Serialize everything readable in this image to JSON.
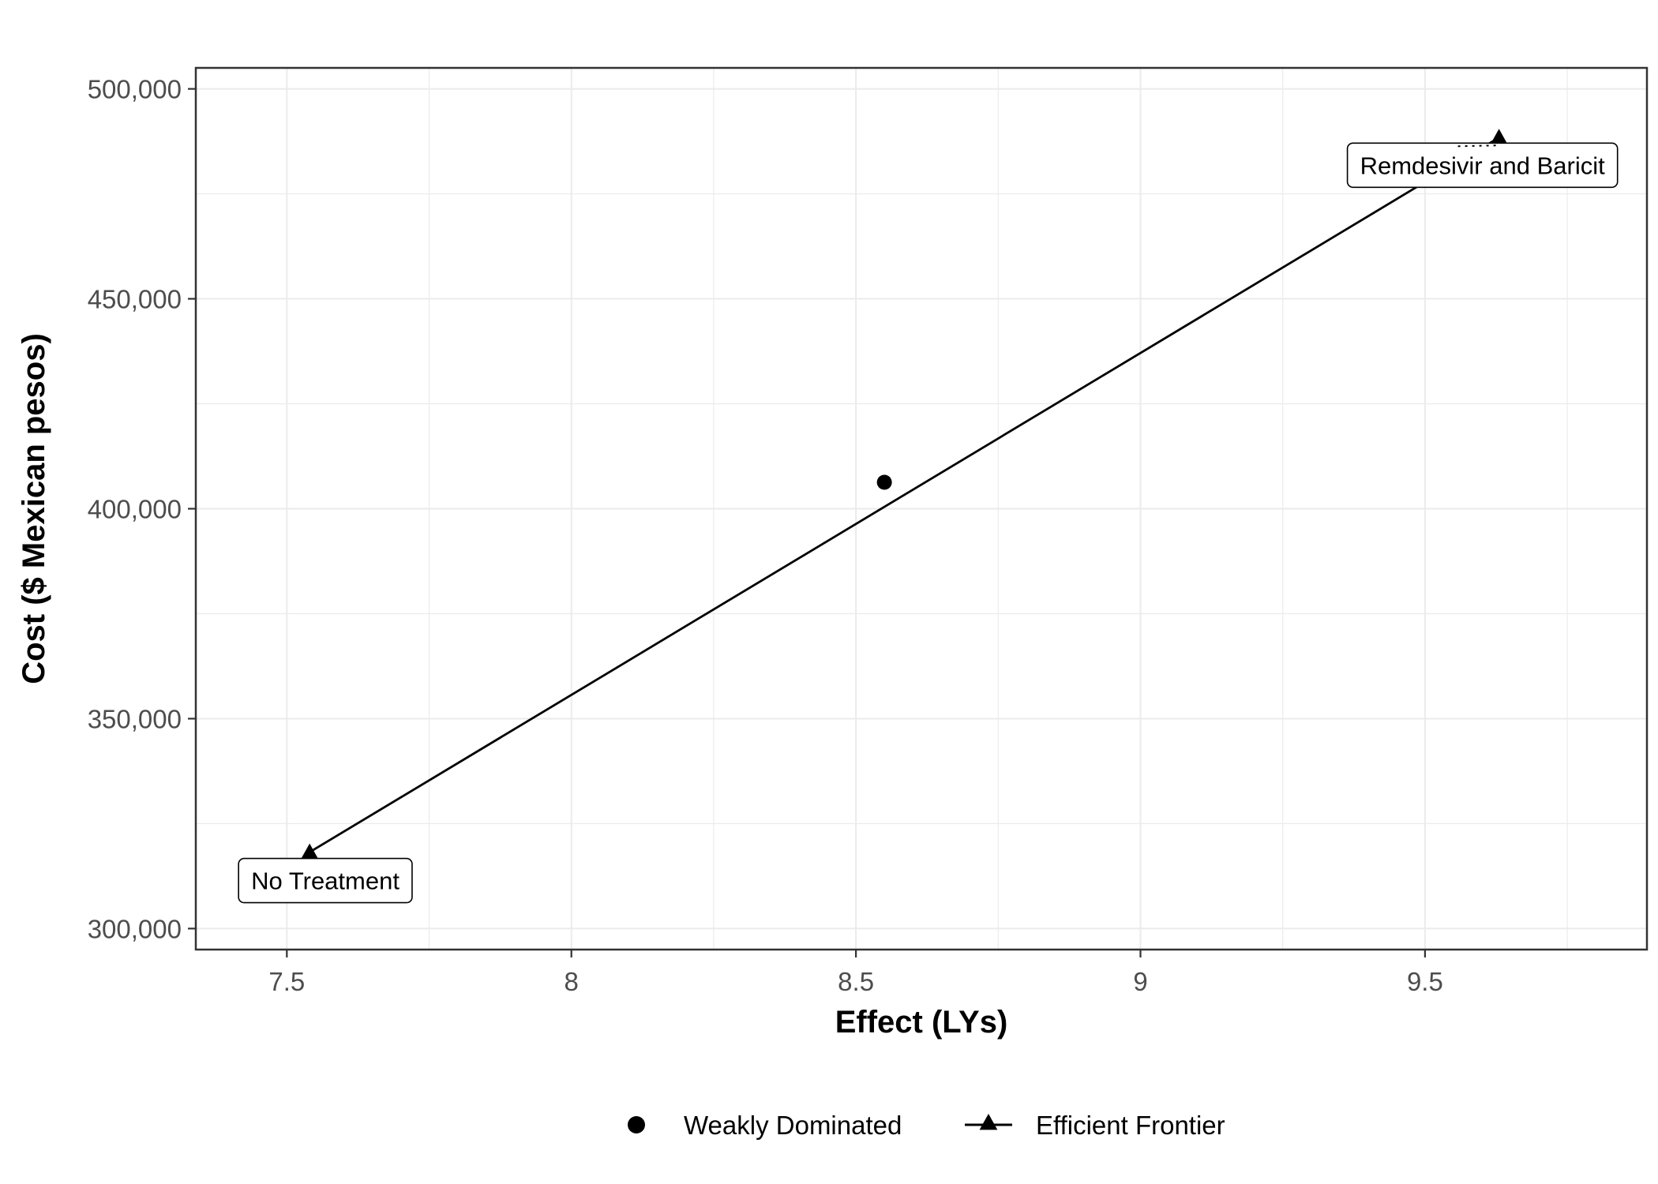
{
  "chart_data": {
    "type": "scatter",
    "title": "",
    "xlabel": "Effect (LYs)",
    "ylabel": "Cost ($ Mexican pesos)",
    "xlim": [
      7.34,
      9.89
    ],
    "ylim": [
      295000,
      505000
    ],
    "x_ticks": [
      7.5,
      8,
      8.5,
      9,
      9.5
    ],
    "x_tick_labels": [
      "7.5",
      "8",
      "8.5",
      "9",
      "9.5"
    ],
    "y_ticks": [
      300000,
      350000,
      400000,
      450000,
      500000
    ],
    "y_tick_labels": [
      "300,000",
      "350,000",
      "400,000",
      "450,000",
      "500,000"
    ],
    "grid": true,
    "legend_position": "bottom",
    "series": [
      {
        "name": "Weakly Dominated",
        "marker": "circle",
        "line": false,
        "points": [
          {
            "x": 8.55,
            "y": 406300
          }
        ]
      },
      {
        "name": "Efficient Frontier",
        "marker": "triangle",
        "line": true,
        "points": [
          {
            "x": 7.54,
            "y": 318200,
            "label": "No Treatment"
          },
          {
            "x": 9.63,
            "y": 488400,
            "label": "Remdesivir and Baricit"
          }
        ]
      }
    ],
    "colors": {
      "marks": "#000000",
      "grid": "#ebebeb",
      "panel_border": "#333333",
      "tick_text": "#4d4d4d"
    }
  }
}
